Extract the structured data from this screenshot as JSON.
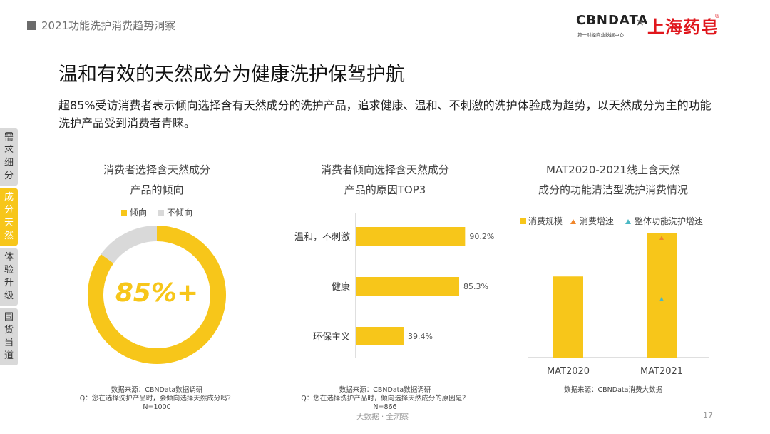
{
  "header": {
    "title": "2021功能洗护消费趋势洞察",
    "logo_cbn": "CBNDATA",
    "logo_cbn_sub": "第一财经商业数据中心",
    "logo_x": "×",
    "logo_brand": "上海药皂",
    "logo_reg": "®"
  },
  "main": {
    "title": "温和有效的天然成分为健康洗护保驾护航",
    "subtitle": "超85%受访消费者表示倾向选择含有天然成分的洗护产品，追求健康、温和、不刺激的洗护体验成为趋势，以天然成分为主的功能洗护产品受到消费者青睐。"
  },
  "side_nav": [
    {
      "label": "需求细分",
      "active": false
    },
    {
      "label": "成分天然",
      "active": true
    },
    {
      "label": "体验升级",
      "active": false
    },
    {
      "label": "国货当道",
      "active": false
    }
  ],
  "colors": {
    "accent": "#f7c61a",
    "grey": "#d9d9d9",
    "orange": "#f0862a",
    "teal": "#4bb8c4"
  },
  "chart_data": [
    {
      "type": "pie",
      "title_line1": "消费者选择含天然成分",
      "title_line2": "产品的倾向",
      "center_label": "85%+",
      "slices": [
        {
          "label": "倾向",
          "value": 85,
          "color": "#f7c61a"
        },
        {
          "label": "不倾向",
          "value": 15,
          "color": "#d9d9d9"
        }
      ],
      "source_lines": [
        "数据来源：CBNData数据调研",
        "Q：您在选择洗护产品时，会倾向选择天然成分吗？",
        "N=1000"
      ]
    },
    {
      "type": "bar",
      "orientation": "horizontal",
      "title_line1": "消费者倾向选择含天然成分",
      "title_line2": "产品的原因TOP3",
      "categories": [
        "温和，不刺激",
        "健康",
        "环保主义"
      ],
      "values": [
        90.2,
        85.3,
        39.4
      ],
      "value_labels": [
        "90.2%",
        "85.3%",
        "39.4%"
      ],
      "xlim": [
        0,
        100
      ],
      "source_lines": [
        "数据来源：CBNData数据调研",
        "Q：您在选择洗护产品时，倾向选择天然成分的原因是？",
        "N=866"
      ]
    },
    {
      "type": "bar",
      "title_line1": "MAT2020-2021线上含天然",
      "title_line2": "成分的功能清洁型洗护消费情况",
      "categories": [
        "MAT2020",
        "MAT2021"
      ],
      "series": [
        {
          "name": "消费规模",
          "kind": "bar",
          "values": [
            65,
            100
          ],
          "color": "#f7c61a"
        },
        {
          "name": "消费增速",
          "kind": "marker",
          "values": [
            null,
            96
          ],
          "color": "#f0862a"
        },
        {
          "name": "整体功能洗护增速",
          "kind": "marker",
          "values": [
            null,
            47
          ],
          "color": "#4bb8c4"
        }
      ],
      "ylim": [
        0,
        100
      ],
      "source_lines": [
        "数据来源：CBNData消费大数据"
      ]
    }
  ],
  "footer": {
    "text": "大数据 · 全洞察",
    "page": "17"
  }
}
